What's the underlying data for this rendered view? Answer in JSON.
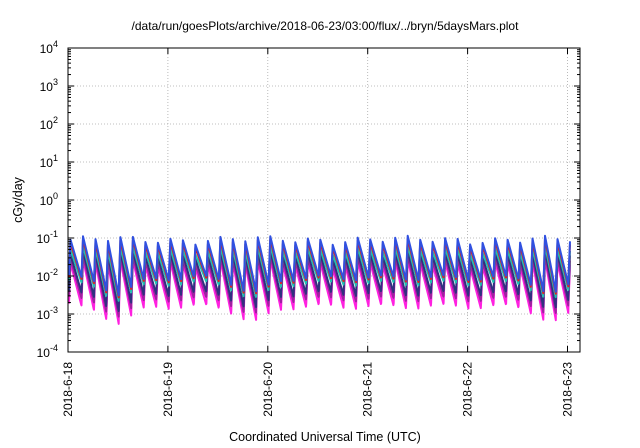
{
  "chart_data": {
    "type": "line",
    "title": "/data/run/goesPlots/archive/2018-06-23/03:00/flux/../bryn/5daysMars.plot",
    "xlabel": "Coordinated Universal Time (UTC)",
    "ylabel": "cGy/day",
    "yscale": "log",
    "ylim": [
      0.0001,
      10000
    ],
    "xlim": [
      "2018-06-18 00:00",
      "2018-06-23 03:00"
    ],
    "grid": true,
    "legend": "none",
    "y_ticks": [
      {
        "value": 0.0001,
        "base": "10",
        "exp": "-4"
      },
      {
        "value": 0.001,
        "base": "10",
        "exp": "-3"
      },
      {
        "value": 0.01,
        "base": "10",
        "exp": "-2"
      },
      {
        "value": 0.1,
        "base": "10",
        "exp": "-1"
      },
      {
        "value": 1,
        "base": "10",
        "exp": "0"
      },
      {
        "value": 10,
        "base": "10",
        "exp": "1"
      },
      {
        "value": 100,
        "base": "10",
        "exp": "2"
      },
      {
        "value": 1000,
        "base": "10",
        "exp": "3"
      },
      {
        "value": 10000,
        "base": "10",
        "exp": "4"
      }
    ],
    "x_ticks": [
      {
        "label": "2018-6-18",
        "day": 0
      },
      {
        "label": "2018-6-19",
        "day": 1
      },
      {
        "label": "2018-6-20",
        "day": 2
      },
      {
        "label": "2018-6-21",
        "day": 3
      },
      {
        "label": "2018-6-22",
        "day": 4
      },
      {
        "label": "2018-6-23",
        "day": 5
      }
    ],
    "series": [
      {
        "color": "#3050e0",
        "peak": 0.09,
        "trough": 0.009
      },
      {
        "color": "#e02020",
        "peak": 0.075,
        "trough": 0.008
      },
      {
        "color": "#20c0b0",
        "peak": 0.05,
        "trough": 0.0065
      },
      {
        "color": "#303080",
        "peak": 0.038,
        "trough": 0.0035
      },
      {
        "color": "#a020a0",
        "peak": 0.028,
        "trough": 0.0025
      },
      {
        "color": "#ff20e0",
        "peak": 0.022,
        "trough": 0.0016
      }
    ],
    "pattern_note": "spikes roughly every 3 hours; troughs deepest around 2018-6-18 09:00, 2018-6-19 18:00 and 2018-6-22 18:00"
  }
}
